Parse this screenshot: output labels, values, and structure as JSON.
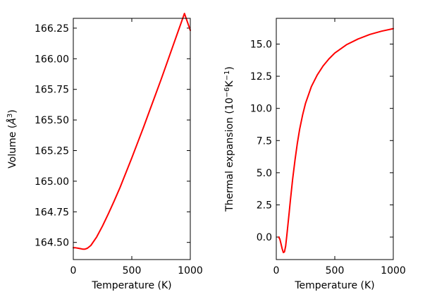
{
  "chart_data": [
    {
      "type": "line",
      "xlabel": "Temperature (K)",
      "ylabel_prefix": "Volume (",
      "ylabel_unit": "Å",
      "ylabel_exp": "3",
      "ylabel_suffix": ")",
      "xlim": [
        0,
        1000
      ],
      "ylim": [
        164.36,
        166.33
      ],
      "xticks": [
        0,
        500,
        1000
      ],
      "xtick_labels": [
        "0",
        "500",
        "1000"
      ],
      "yticks": [
        164.5,
        164.75,
        165.0,
        165.25,
        165.5,
        165.75,
        166.0,
        166.25
      ],
      "ytick_labels": [
        "164.50",
        "164.75",
        "165.00",
        "165.25",
        "165.50",
        "165.75",
        "166.00",
        "166.25"
      ],
      "series": [
        {
          "name": "Volume",
          "color": "#ff0000",
          "x": [
            0,
            20,
            40,
            60,
            80,
            100,
            120,
            150,
            200,
            250,
            300,
            350,
            400,
            450,
            500,
            550,
            600,
            650,
            700,
            750,
            800,
            850,
            900,
            950,
            1000
          ],
          "y": [
            164.457,
            164.456,
            164.453,
            164.449,
            164.445,
            164.445,
            164.452,
            164.475,
            164.545,
            164.635,
            164.735,
            164.84,
            164.95,
            165.07,
            165.19,
            165.315,
            165.44,
            165.57,
            165.7,
            165.83,
            165.965,
            166.1,
            166.235,
            166.37,
            166.232
          ]
        }
      ]
    },
    {
      "type": "line",
      "xlabel": "Temperature (K)",
      "ylabel_prefix": "Thermal expansion (10",
      "ylabel_exp1": "−6",
      "ylabel_mid": "K",
      "ylabel_exp2": "−1",
      "ylabel_suffix": ")",
      "xlim": [
        0,
        1000
      ],
      "ylim": [
        -1.75,
        17.0
      ],
      "xticks": [
        0,
        500,
        1000
      ],
      "xtick_labels": [
        "0",
        "500",
        "1000"
      ],
      "yticks": [
        0.0,
        2.5,
        5.0,
        7.5,
        10.0,
        12.5,
        15.0
      ],
      "ytick_labels": [
        "0.0",
        "2.5",
        "5.0",
        "7.5",
        "10.0",
        "12.5",
        "15.0"
      ],
      "series": [
        {
          "name": "Thermal expansion",
          "color": "#ff0000",
          "x": [
            20,
            30,
            40,
            50,
            60,
            70,
            80,
            90,
            100,
            110,
            120,
            140,
            160,
            180,
            200,
            225,
            250,
            300,
            350,
            400,
            450,
            500,
            600,
            700,
            800,
            900,
            1000
          ],
          "y": [
            0.0,
            -0.15,
            -0.5,
            -0.9,
            -1.2,
            -1.15,
            -0.7,
            0.1,
            1.0,
            1.9,
            2.8,
            4.5,
            6.0,
            7.3,
            8.4,
            9.5,
            10.4,
            11.7,
            12.6,
            13.3,
            13.85,
            14.3,
            14.95,
            15.4,
            15.75,
            16.0,
            16.2
          ]
        }
      ]
    }
  ]
}
